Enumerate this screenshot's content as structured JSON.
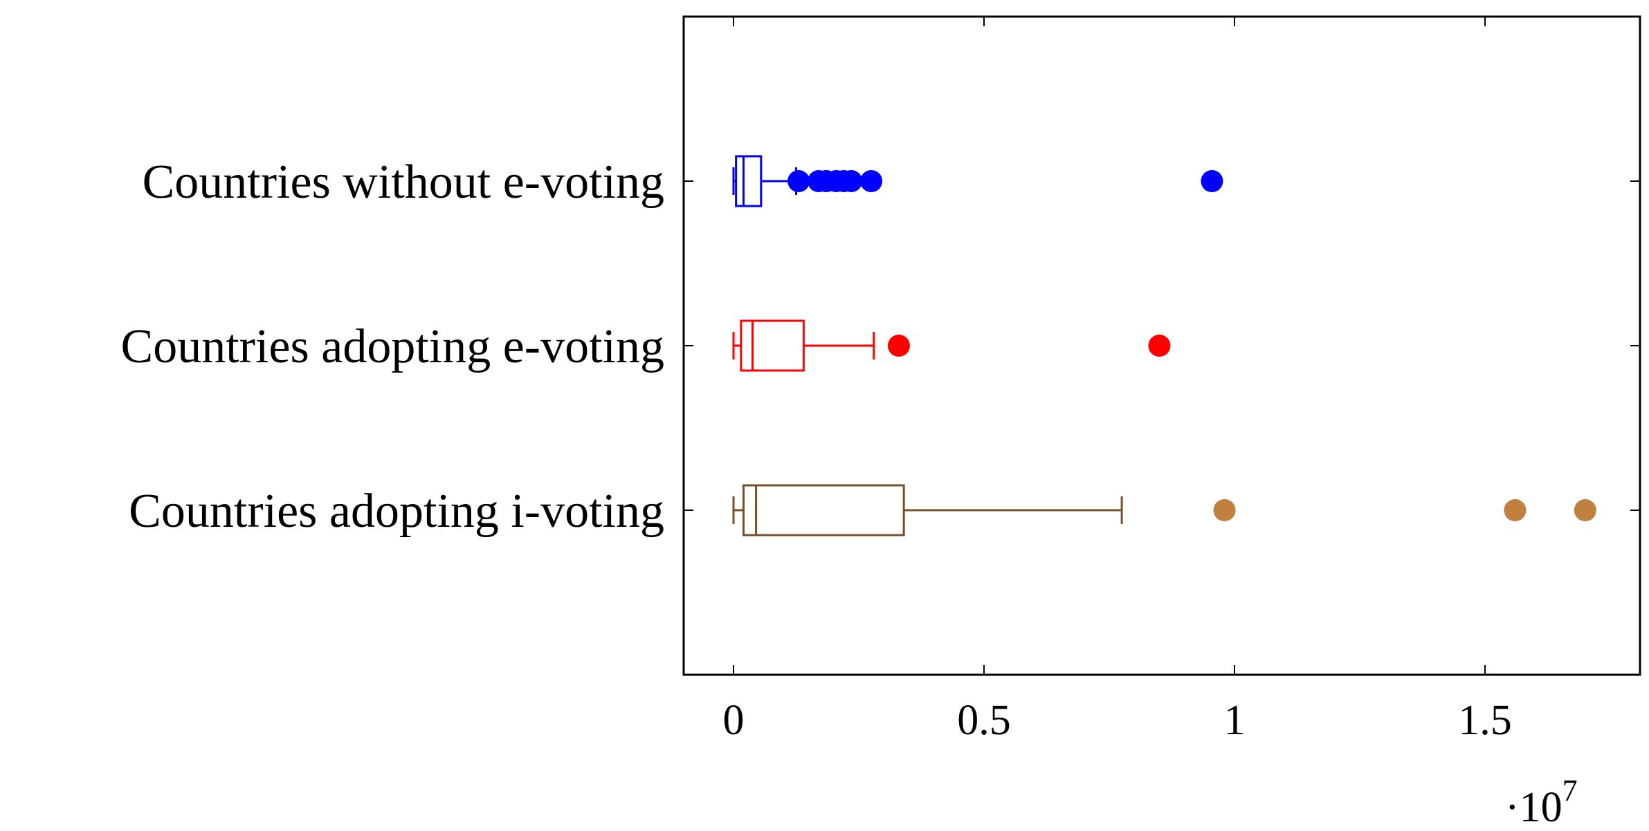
{
  "chart_data": {
    "type": "boxplot",
    "orientation": "horizontal",
    "title": "",
    "xlabel": "",
    "ylabel": "",
    "xlim": [
      -1000000,
      18000000
    ],
    "x_ticks": [
      {
        "value": 0,
        "label": "0"
      },
      {
        "value": 5000000,
        "label": "0.5"
      },
      {
        "value": 10000000,
        "label": "1"
      },
      {
        "value": 15000000,
        "label": "1.5"
      }
    ],
    "x_multiplier_prefix": "·10",
    "x_multiplier_exponent": "7",
    "grid": false,
    "legend": "none",
    "series": [
      {
        "category": "Countries without e-voting",
        "color": "#0000ff",
        "outlier_color": "#0000ff",
        "whisker_low": 0,
        "q1": 50000,
        "median": 200000,
        "q3": 550000,
        "whisker_high": 1250000,
        "outliers": [
          1300000,
          1700000,
          1850000,
          2050000,
          2200000,
          2350000,
          2750000,
          9550000
        ]
      },
      {
        "category": "Countries adopting e-voting",
        "color": "#ff0000",
        "outlier_color": "#ff0000",
        "whisker_low": 0,
        "q1": 150000,
        "median": 380000,
        "q3": 1400000,
        "whisker_high": 2800000,
        "outliers": [
          3300000,
          8500000
        ]
      },
      {
        "category": "Countries adopting i-voting",
        "color": "#75502a",
        "outlier_color": "#bf8040",
        "whisker_low": 0,
        "q1": 200000,
        "median": 450000,
        "q3": 3400000,
        "whisker_high": 7750000,
        "outliers": [
          9800000,
          15600000,
          17000000
        ]
      }
    ]
  }
}
